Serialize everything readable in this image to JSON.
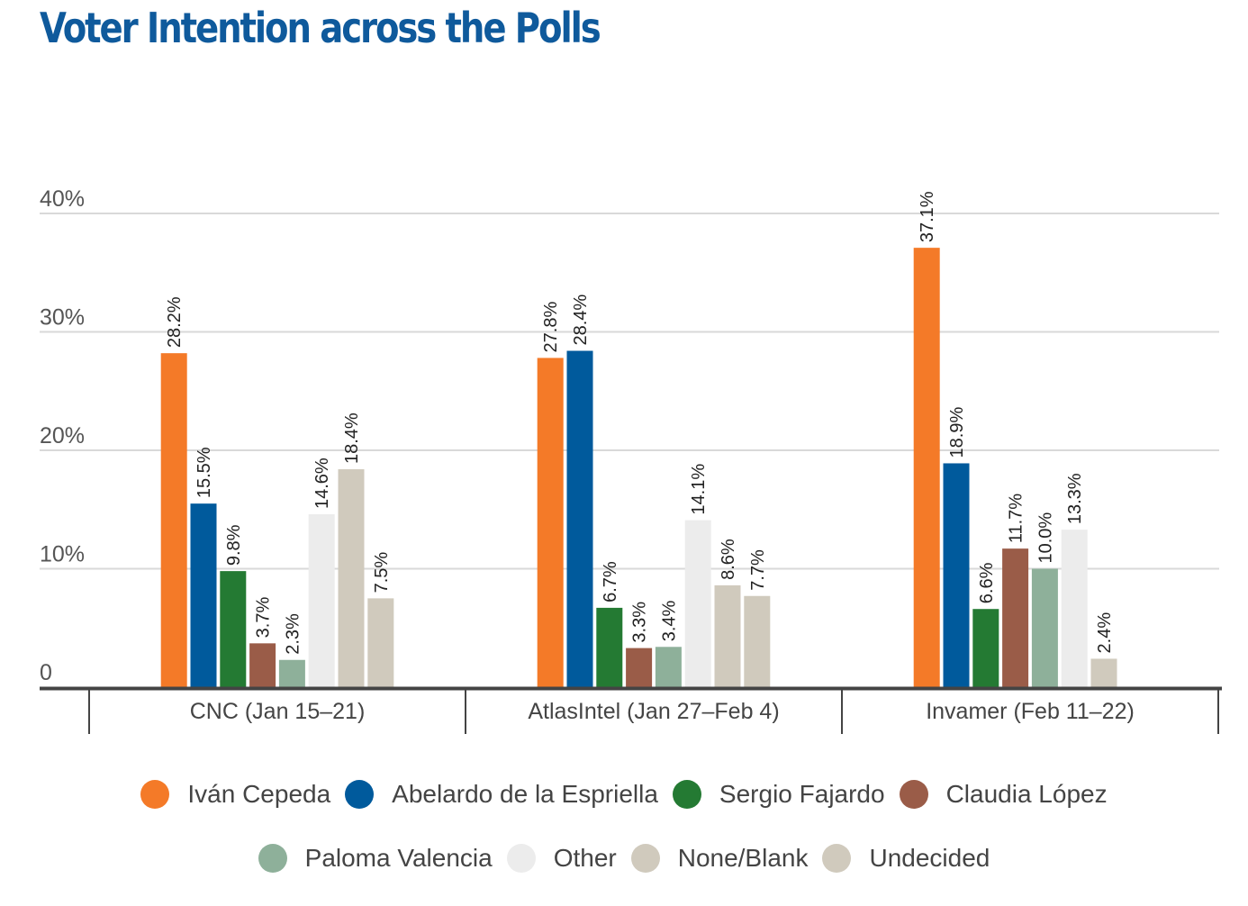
{
  "title": "Voter Intention across the Polls",
  "chart_data": {
    "type": "bar",
    "title": "Voter Intention across the Polls",
    "xlabel": "",
    "ylabel": "",
    "ylim": [
      0,
      40
    ],
    "yticks": [
      0,
      10,
      20,
      30,
      40
    ],
    "ytick_labels": [
      "0",
      "10%",
      "20%",
      "30%",
      "40%"
    ],
    "grid": true,
    "legend_position": "bottom",
    "categories": [
      "CNC (Jan 15–21)",
      "AtlasIntel (Jan 27–Feb 4)",
      "Invamer (Feb 11–22)"
    ],
    "series": [
      {
        "name": "Iván Cepeda",
        "color": "#f47a28",
        "values": [
          28.2,
          27.8,
          37.1
        ]
      },
      {
        "name": "Abelardo de la Espriella",
        "color": "#005a9c",
        "values": [
          15.5,
          28.4,
          18.9
        ]
      },
      {
        "name": "Sergio Fajardo",
        "color": "#247a33",
        "values": [
          9.8,
          6.7,
          6.6
        ]
      },
      {
        "name": "Claudia López",
        "color": "#9a5c48",
        "values": [
          3.7,
          3.3,
          11.7
        ]
      },
      {
        "name": "Paloma Valencia",
        "color": "#8eb09a",
        "values": [
          2.3,
          3.4,
          10.0
        ]
      },
      {
        "name": "Other",
        "color": "#ececec",
        "values": [
          14.6,
          14.1,
          13.3
        ]
      },
      {
        "name": "None/Blank",
        "color": "#d0cabd",
        "values": [
          18.4,
          8.6,
          2.4
        ]
      },
      {
        "name": "Undecided",
        "color": "#d0cabd",
        "values": [
          7.5,
          7.7,
          null
        ]
      }
    ],
    "value_format": "{v}%"
  },
  "legend": {
    "row1": [
      {
        "label": "Iván Cepeda",
        "color": "#f47a28"
      },
      {
        "label": "Abelardo de la Espriella",
        "color": "#005a9c"
      },
      {
        "label": "Sergio Fajardo",
        "color": "#247a33"
      },
      {
        "label": "Claudia López",
        "color": "#9a5c48"
      }
    ],
    "row2": [
      {
        "label": "Paloma Valencia",
        "color": "#8eb09a"
      },
      {
        "label": "Other",
        "color": "#ececec"
      },
      {
        "label": "None/Blank",
        "color": "#d0cabd"
      },
      {
        "label": "Undecided",
        "color": "#d0cabd"
      }
    ]
  },
  "colors": {
    "title": "#0f5a9c",
    "grid": "#d9d9d9",
    "axis": "#444444"
  }
}
